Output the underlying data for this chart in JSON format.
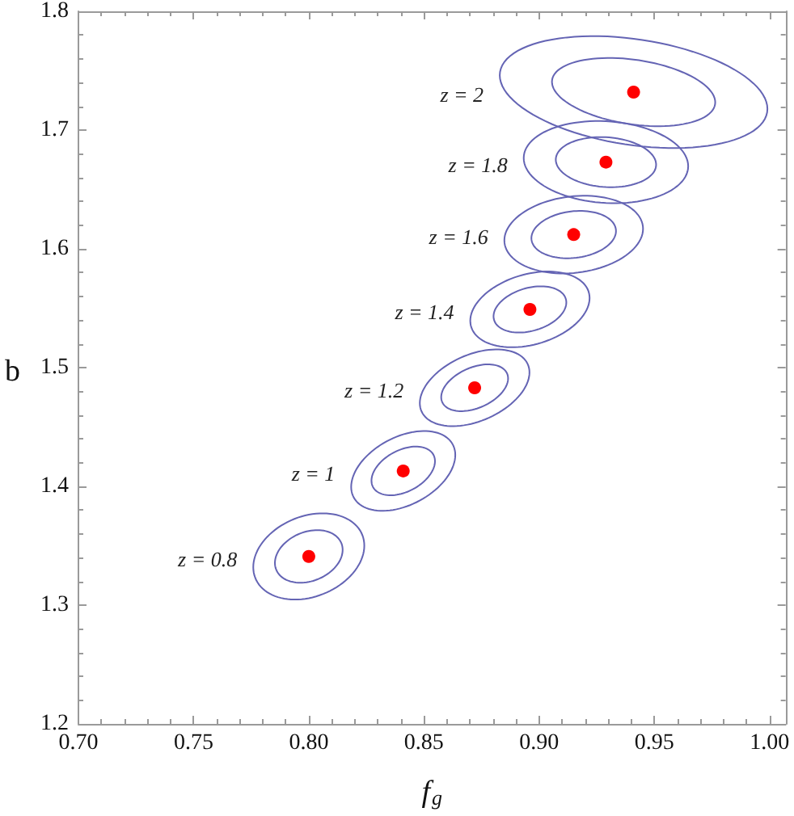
{
  "chart_data": {
    "type": "scatter",
    "xlabel": "f$_{g}$",
    "ylabel": "b",
    "xlim": [
      0.7,
      1.007
    ],
    "ylim": [
      1.2,
      1.8
    ],
    "xticks": [
      {
        "value": 0.7,
        "label": "0.70"
      },
      {
        "value": 0.71,
        "label": null
      },
      {
        "value": 0.72,
        "label": null
      },
      {
        "value": 0.73,
        "label": null
      },
      {
        "value": 0.74,
        "label": null
      },
      0.75,
      {
        "value": 0.76,
        "label": null
      },
      {
        "value": 0.77,
        "label": null
      },
      {
        "value": 0.78,
        "label": null
      },
      {
        "value": 0.79,
        "label": null
      },
      {
        "value": 0.8,
        "label": "0.80"
      },
      {
        "value": 0.81,
        "label": null
      },
      {
        "value": 0.82,
        "label": null
      },
      {
        "value": 0.83,
        "label": null
      },
      {
        "value": 0.84,
        "label": null
      },
      0.85,
      {
        "value": 0.86,
        "label": null
      },
      {
        "value": 0.87,
        "label": null
      },
      {
        "value": 0.88,
        "label": null
      },
      {
        "value": 0.89,
        "label": null
      },
      {
        "value": 0.9,
        "label": "0.90"
      },
      {
        "value": 0.91,
        "label": null
      },
      {
        "value": 0.92,
        "label": null
      },
      {
        "value": 0.93,
        "label": null
      },
      {
        "value": 0.94,
        "label": null
      },
      0.95,
      {
        "value": 0.96,
        "label": null
      },
      {
        "value": 0.97,
        "label": null
      },
      {
        "value": 0.98,
        "label": null
      },
      {
        "value": 0.99,
        "label": null
      },
      {
        "value": 1,
        "label": "1.00"
      }
    ],
    "yticks": [
      1.2,
      {
        "value": 1.22,
        "label": null
      },
      {
        "value": 1.24,
        "label": null
      },
      {
        "value": 1.26,
        "label": null
      },
      {
        "value": 1.28,
        "label": null
      },
      1.3,
      {
        "value": 1.32,
        "label": null
      },
      {
        "value": 1.34,
        "label": null
      },
      {
        "value": 1.36,
        "label": null
      },
      {
        "value": 1.38,
        "label": null
      },
      1.4,
      {
        "value": 1.42,
        "label": null
      },
      {
        "value": 1.44,
        "label": null
      },
      {
        "value": 1.46,
        "label": null
      },
      {
        "value": 1.48,
        "label": null
      },
      1.5,
      {
        "value": 1.52,
        "label": null
      },
      {
        "value": 1.54,
        "label": null
      },
      {
        "value": 1.56,
        "label": null
      },
      {
        "value": 1.58,
        "label": null
      },
      1.6,
      {
        "value": 1.62,
        "label": null
      },
      {
        "value": 1.64,
        "label": null
      },
      {
        "value": 1.66,
        "label": null
      },
      {
        "value": 1.68,
        "label": null
      },
      1.7,
      {
        "value": 1.72,
        "label": null
      },
      {
        "value": 1.74,
        "label": null
      },
      {
        "value": 1.76,
        "label": null
      },
      {
        "value": 1.78,
        "label": null
      },
      1.8
    ],
    "series": [
      {
        "color": "#ff0000",
        "marker": "circle",
        "x": [
          0.8,
          0.841,
          0.872,
          0.896,
          0.915,
          0.929,
          0.941
        ],
        "values": [
          1.341,
          1.413,
          1.483,
          1.549,
          1.612,
          1.673,
          1.732
        ]
      }
    ],
    "annotations": [
      "z = 0.8",
      "z = 1",
      "z = 1.2",
      "z = 1.4",
      "z = 1.6",
      "z = 1.8",
      "z = 2"
    ]
  }
}
